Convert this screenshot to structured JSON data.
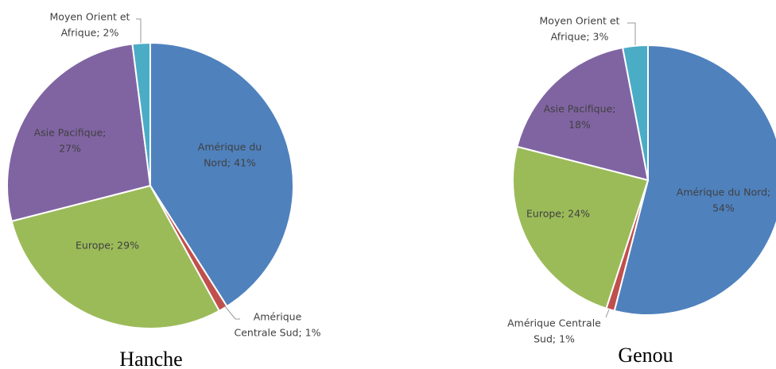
{
  "chart_data": [
    {
      "type": "pie",
      "title": "Hanche",
      "values": [
        41,
        1,
        29,
        27,
        2
      ],
      "value_labels": [
        [
          "Amérique du",
          "Nord; 41%"
        ],
        [
          "Amérique",
          "Centrale Sud; 1%"
        ],
        [
          "Europe; 29%"
        ],
        [
          "Asie Pacifique;",
          "27%"
        ],
        [
          "Moyen Orient et",
          "Afrique; 2%"
        ]
      ],
      "colors": [
        "#4f81bd",
        "#c0504d",
        "#9bbb59",
        "#8064a2",
        "#4bacc6"
      ]
    },
    {
      "type": "pie",
      "title": "Genou",
      "values": [
        54,
        1,
        24,
        18,
        3
      ],
      "value_labels": [
        [
          "Amérique du Nord;",
          "54%"
        ],
        [
          "Amérique Centrale",
          "Sud; 1%"
        ],
        [
          "Europe; 24%"
        ],
        [
          "Asie Pacifique;",
          "18%"
        ],
        [
          "Moyen Orient et",
          "Afrique; 3%"
        ]
      ],
      "colors": [
        "#4f81bd",
        "#c0504d",
        "#9bbb59",
        "#8064a2",
        "#4bacc6"
      ]
    }
  ]
}
